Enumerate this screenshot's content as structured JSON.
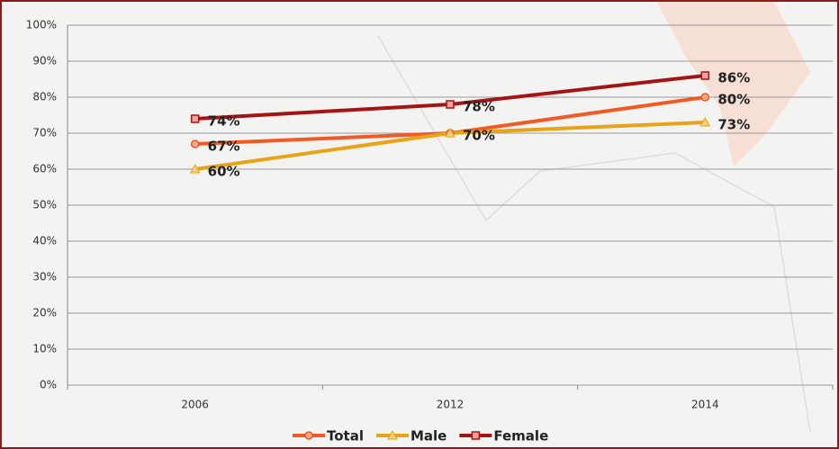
{
  "chart_data": {
    "type": "line",
    "categories": [
      "2006",
      "2012",
      "2014"
    ],
    "series": [
      {
        "name": "Total",
        "color": "#f15a24",
        "marker": "circle",
        "values": [
          67,
          70,
          80
        ],
        "value_labels": [
          "67%",
          null,
          "80%"
        ]
      },
      {
        "name": "Male",
        "color": "#e8a317",
        "marker": "triangle",
        "values": [
          60,
          70,
          73
        ],
        "value_labels": [
          "60%",
          "70%",
          "73%"
        ]
      },
      {
        "name": "Female",
        "color": "#a31515",
        "marker": "square",
        "values": [
          74,
          78,
          86
        ],
        "value_labels": [
          "74%",
          "78%",
          "86%"
        ]
      }
    ],
    "ylim": [
      0,
      100
    ],
    "yticks": [
      {
        "value": 0,
        "label": "0%"
      },
      {
        "value": 10,
        "label": "10%"
      },
      {
        "value": 20,
        "label": "20%"
      },
      {
        "value": 30,
        "label": "30%"
      },
      {
        "value": 40,
        "label": "40%"
      },
      {
        "value": 50,
        "label": "50%"
      },
      {
        "value": 60,
        "label": "60%"
      },
      {
        "value": 70,
        "label": "70%"
      },
      {
        "value": 80,
        "label": "80%"
      },
      {
        "value": 90,
        "label": "90%"
      },
      {
        "value": 100,
        "label": "100%"
      }
    ],
    "grid": true,
    "legend": "bottom"
  }
}
